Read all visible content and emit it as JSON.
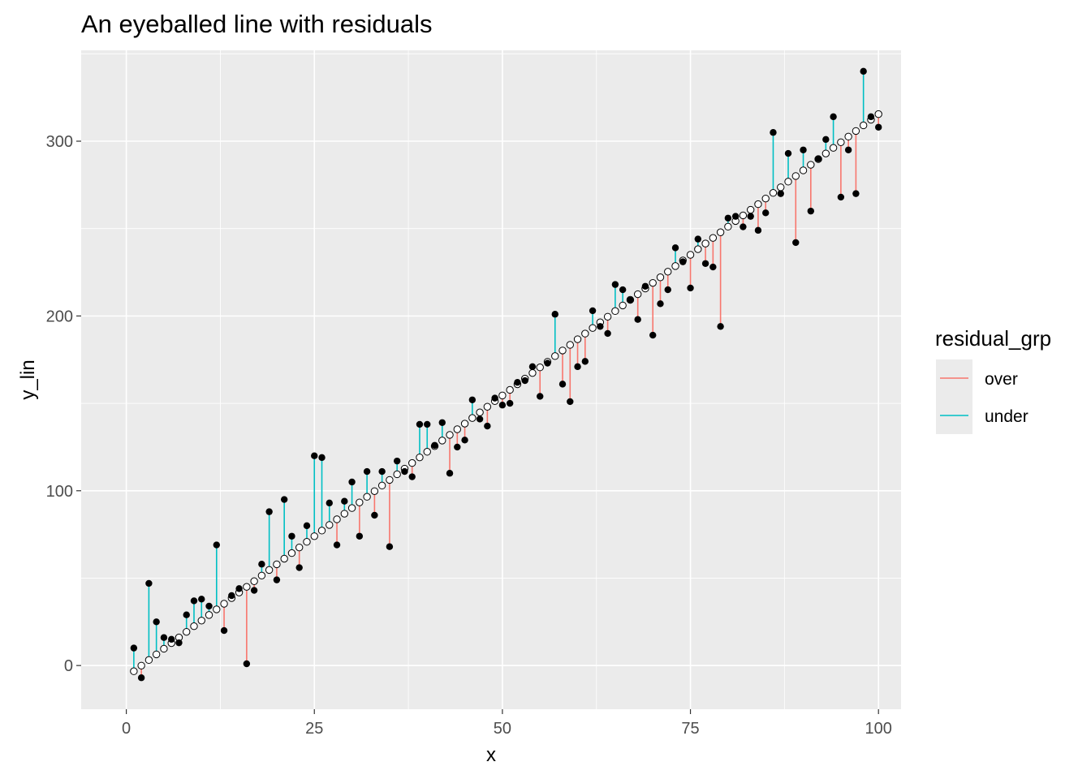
{
  "chart_data": {
    "type": "scatter",
    "title": "An eyeballed line with residuals",
    "xlabel": "x",
    "ylabel": "y_lin",
    "xlim": [
      -6,
      103
    ],
    "ylim": [
      -25,
      352
    ],
    "x_ticks": [
      0,
      25,
      50,
      75,
      100
    ],
    "y_ticks": [
      0,
      100,
      200,
      300
    ],
    "grid": true,
    "legend_position": "right",
    "legend": {
      "title": "residual_grp",
      "entries": [
        {
          "label": "over",
          "color": "#F8766D"
        },
        {
          "label": "under",
          "color": "#00BFC4"
        }
      ]
    },
    "colors": {
      "over": "#F8766D",
      "under": "#00BFC4",
      "panel": "#EBEBEB",
      "grid": "#FFFFFF",
      "points": "#000000"
    },
    "fitted_line": {
      "intercept": -6.5,
      "slope": 3.22
    },
    "x": [
      1,
      2,
      3,
      4,
      5,
      6,
      7,
      8,
      9,
      10,
      11,
      12,
      13,
      14,
      15,
      16,
      17,
      18,
      19,
      20,
      21,
      22,
      23,
      24,
      25,
      26,
      27,
      28,
      29,
      30,
      31,
      32,
      33,
      34,
      35,
      36,
      37,
      38,
      39,
      40,
      41,
      42,
      43,
      44,
      45,
      46,
      47,
      48,
      49,
      50,
      51,
      52,
      53,
      54,
      55,
      56,
      57,
      58,
      59,
      60,
      61,
      62,
      63,
      64,
      65,
      66,
      67,
      68,
      69,
      70,
      71,
      72,
      73,
      74,
      75,
      76,
      77,
      78,
      79,
      80,
      81,
      82,
      83,
      84,
      85,
      86,
      87,
      88,
      89,
      90,
      91,
      92,
      93,
      94,
      95,
      96,
      97,
      98,
      99,
      100
    ],
    "y": [
      10,
      -7,
      47,
      25,
      16,
      15,
      13,
      29,
      37,
      38,
      34,
      69,
      20,
      40,
      44,
      1,
      43,
      58,
      88,
      49,
      95,
      74,
      56,
      80,
      120,
      119,
      93,
      69,
      94,
      105,
      74,
      111,
      86,
      111,
      68,
      117,
      111,
      108,
      138,
      138,
      126,
      139,
      110,
      125,
      129,
      152,
      141,
      137,
      153,
      149,
      150,
      162,
      163,
      171,
      154,
      173,
      201,
      161,
      151,
      171,
      174,
      203,
      194,
      190,
      218,
      215,
      209,
      198,
      217,
      189,
      207,
      215,
      239,
      231,
      216,
      244,
      230,
      228,
      194,
      256,
      257,
      251,
      257,
      249,
      259,
      305,
      270,
      293,
      242,
      295,
      260,
      290,
      301,
      314,
      268,
      295,
      270,
      340,
      314,
      308
    ]
  }
}
